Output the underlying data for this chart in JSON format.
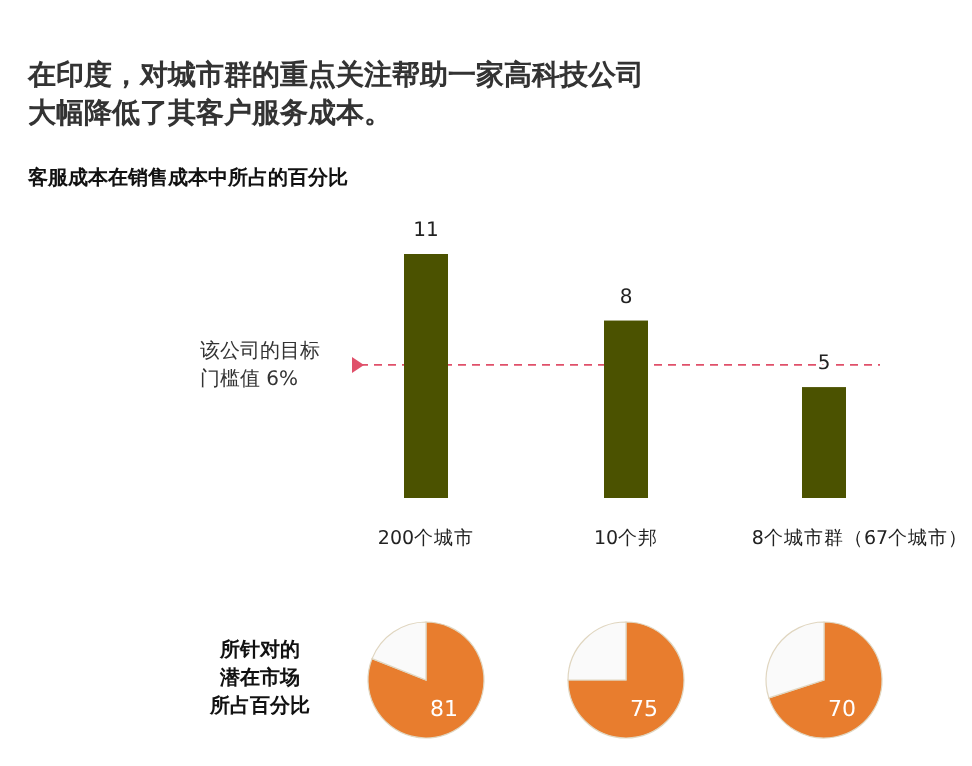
{
  "chart_data": [
    {
      "type": "bar",
      "title": "在印度，对城市群的重点关注帮助一家高科技公司大幅降低了其客户服务成本。",
      "subtitle": "客服成本在销售成本中所占的百分比",
      "categories": [
        "200个城市",
        "10个邦",
        "8个城市群（67个城市）"
      ],
      "values": [
        11,
        8,
        5
      ],
      "color": "#4b5200",
      "data_labels": true,
      "ref_lines": [
        {
          "axis": "y",
          "value": 6,
          "label": "该公司的目标门槛值 6%",
          "color": "#e0506a",
          "line_style": "dashed"
        }
      ]
    },
    {
      "type": "pie",
      "title": "所针对的潜在市场所占百分比",
      "categories": [
        null,
        null
      ],
      "values": [
        81,
        19
      ],
      "colors": [
        "#e87d2e",
        "#fafafa"
      ],
      "value_labels": [
        "81",
        null
      ]
    },
    {
      "type": "pie",
      "categories": [
        null,
        null
      ],
      "values": [
        75,
        25
      ],
      "colors": [
        "#e87d2e",
        "#fafafa"
      ],
      "value_labels": [
        "75",
        null
      ]
    },
    {
      "type": "pie",
      "categories": [
        null,
        null
      ],
      "values": [
        70,
        30
      ],
      "colors": [
        "#e87d2e",
        "#fafafa"
      ],
      "value_labels": [
        "70",
        null
      ]
    }
  ]
}
